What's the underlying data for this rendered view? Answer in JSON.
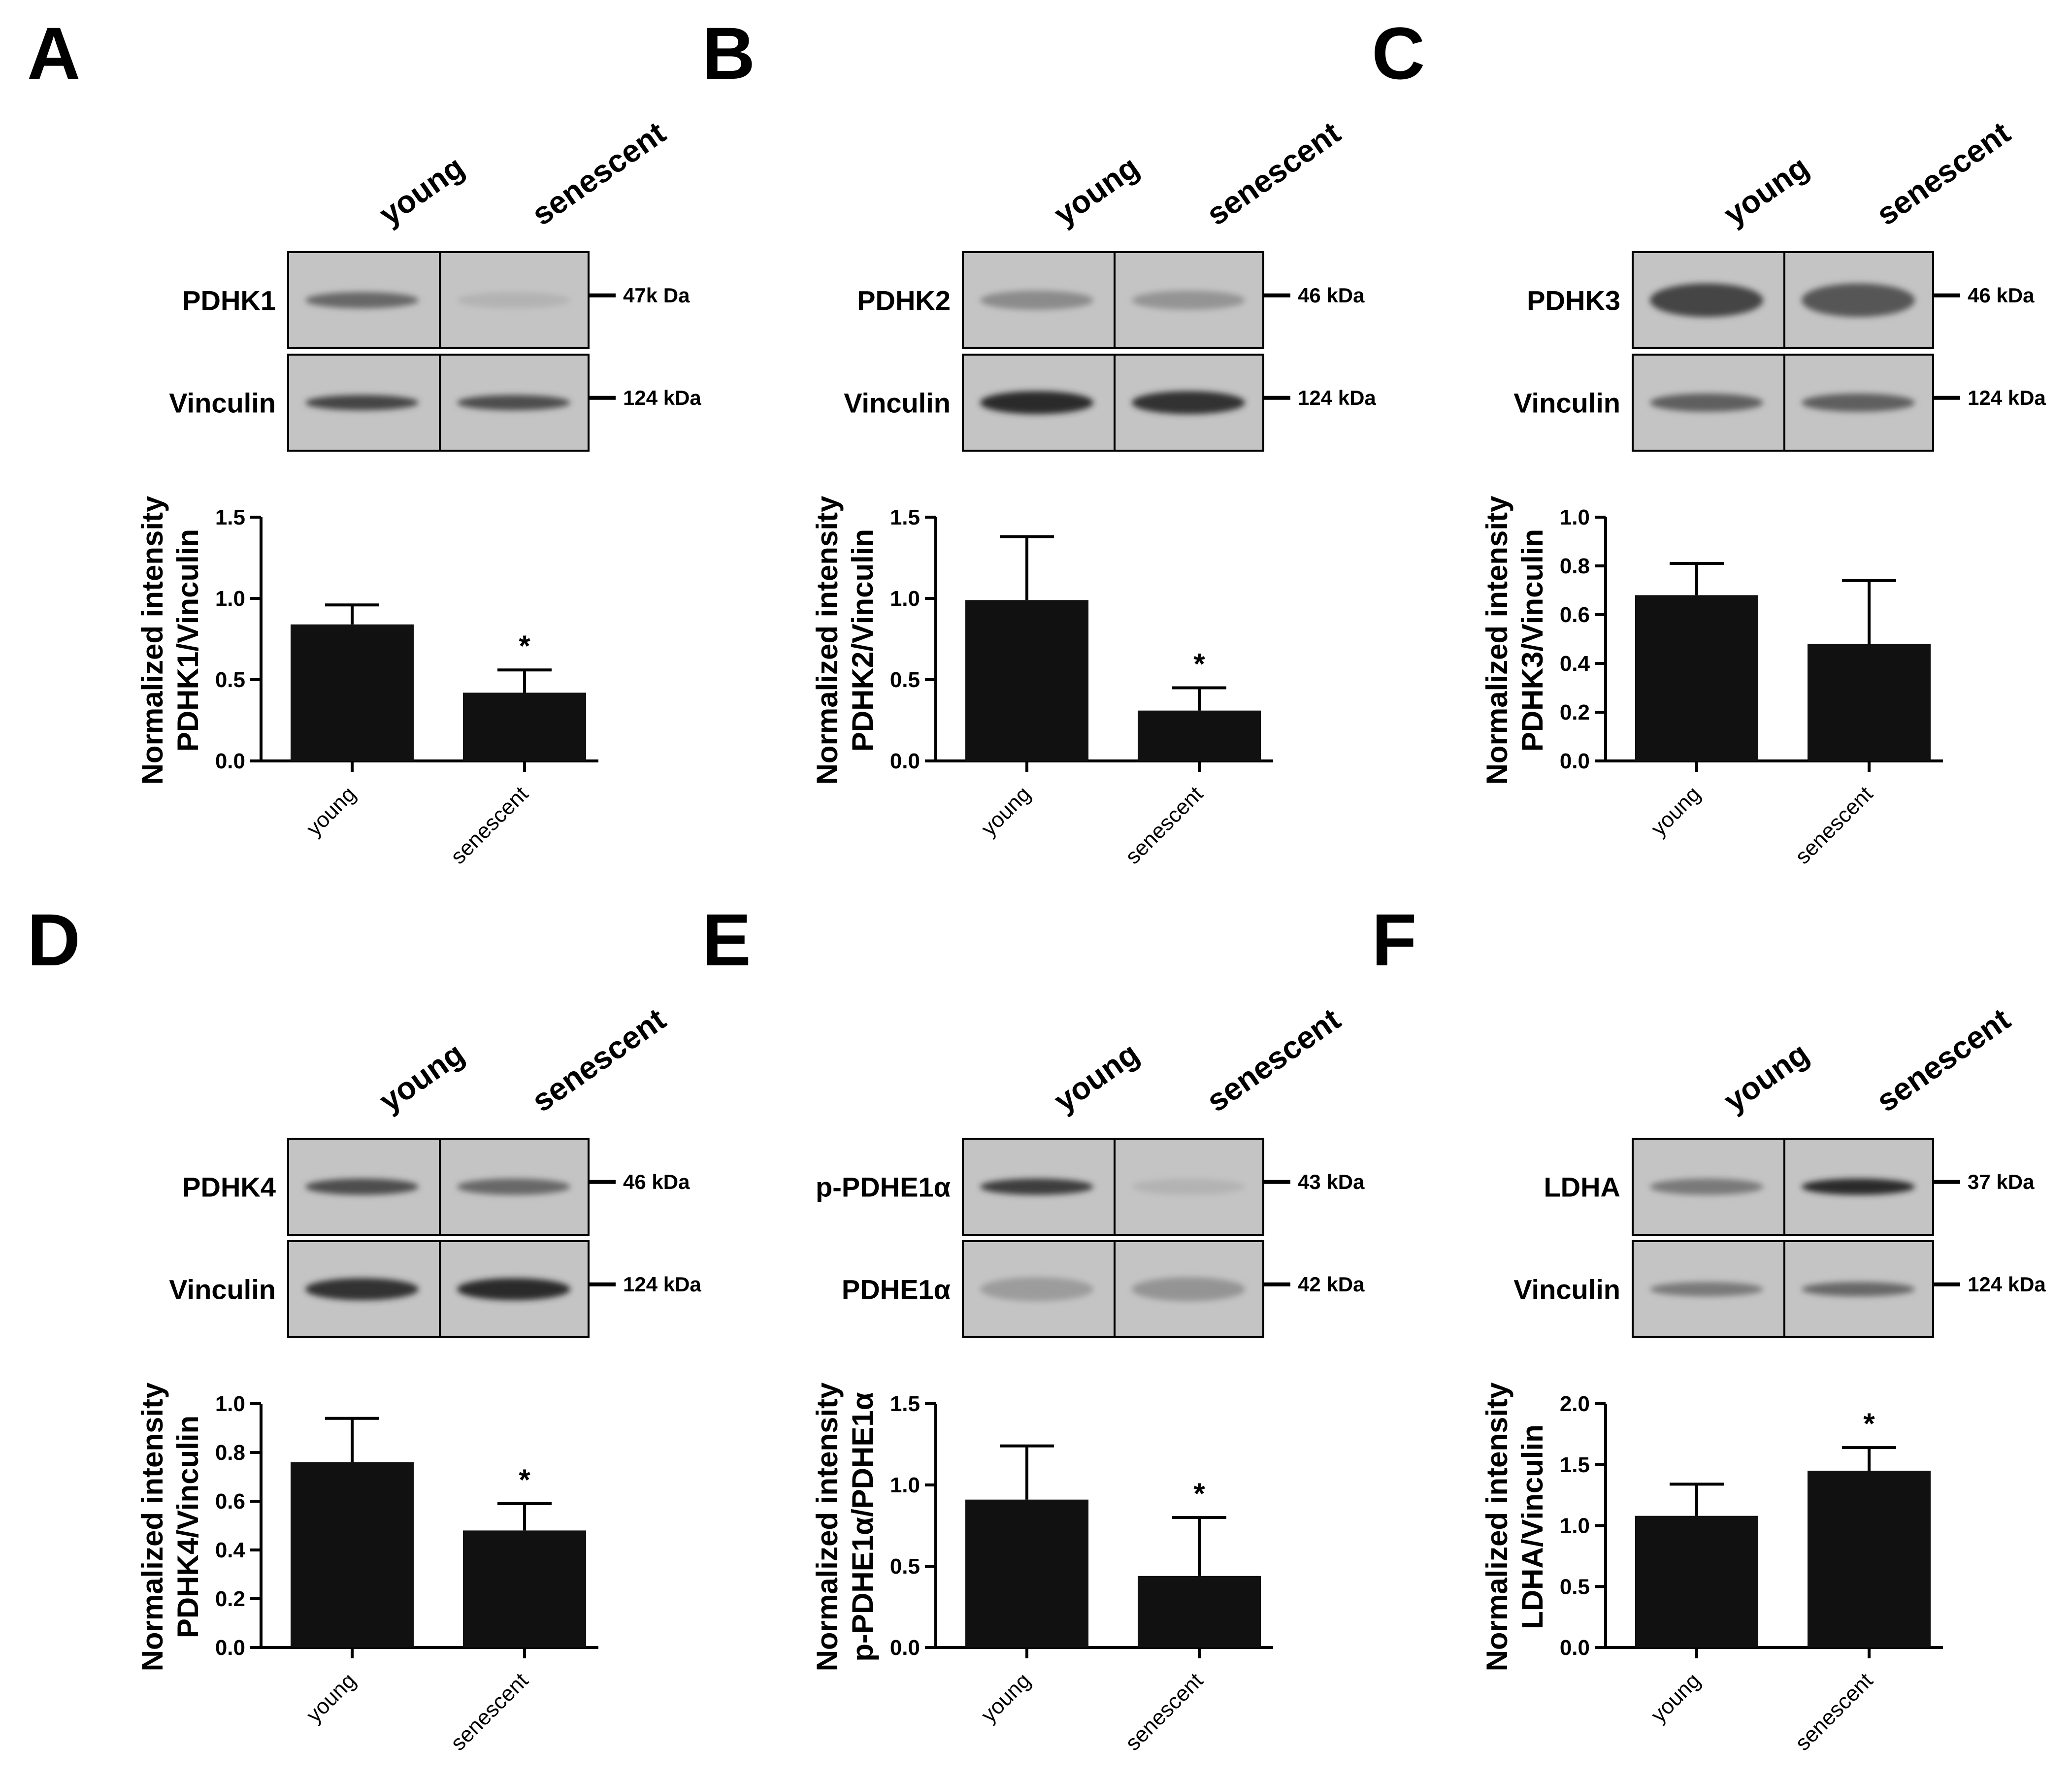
{
  "lanes": [
    "young",
    "senescent"
  ],
  "chart_data": [
    {
      "panel": "A",
      "type": "bar",
      "blot": {
        "rows": [
          {
            "protein": "PDHK1",
            "size": "47k Da",
            "band": [
              0.55,
              0.12
            ],
            "width": 0.14,
            "blur": 0.25
          },
          {
            "protein": "Vinculin",
            "size": "124 kDa",
            "band": [
              0.75,
              0.7
            ],
            "width": 0.12,
            "blur": 0.2
          }
        ]
      },
      "categories": [
        "young",
        "senescent"
      ],
      "values": [
        0.84,
        0.42
      ],
      "errors": [
        0.12,
        0.14
      ],
      "significance": [
        "",
        "*"
      ],
      "ylabel_lines": [
        "Normalized intensity",
        "PDHK1/Vinculin"
      ],
      "ylim": [
        0,
        1.5
      ],
      "yticks": [
        "0.0",
        "0.5",
        "1.0",
        "1.5"
      ],
      "ytick_values": [
        0,
        0.5,
        1.0,
        1.5
      ]
    },
    {
      "panel": "B",
      "type": "bar",
      "blot": {
        "rows": [
          {
            "protein": "PDHK2",
            "size": "46 kDa",
            "band": [
              0.35,
              0.3
            ],
            "width": 0.2,
            "blur": 0.35
          },
          {
            "protein": "Vinculin",
            "size": "124 kDa",
            "band": [
              0.9,
              0.85
            ],
            "width": 0.28,
            "blur": 0.35
          }
        ]
      },
      "categories": [
        "young",
        "senescent"
      ],
      "values": [
        0.99,
        0.31
      ],
      "errors": [
        0.39,
        0.14
      ],
      "significance": [
        "",
        "*"
      ],
      "ylabel_lines": [
        "Normalized intensity",
        "PDHK2/Vinculin"
      ],
      "ylim": [
        0,
        1.5
      ],
      "yticks": [
        "0.0",
        "0.5",
        "1.0",
        "1.5"
      ],
      "ytick_values": [
        0,
        0.5,
        1.0,
        1.5
      ]
    },
    {
      "panel": "C",
      "type": "bar",
      "blot": {
        "rows": [
          {
            "protein": "PDHK3",
            "size": "46 kDa",
            "band": [
              0.75,
              0.65
            ],
            "width": 0.5,
            "blur": 0.6
          },
          {
            "protein": "Vinculin",
            "size": "124 kDa",
            "band": [
              0.6,
              0.6
            ],
            "width": 0.18,
            "blur": 0.3
          }
        ]
      },
      "categories": [
        "young",
        "senescent"
      ],
      "values": [
        0.68,
        0.48
      ],
      "errors": [
        0.13,
        0.26
      ],
      "significance": [
        "",
        ""
      ],
      "ylabel_lines": [
        "Normalized intensity",
        "PDHK3/Vinculin"
      ],
      "ylim": [
        0,
        1.0
      ],
      "yticks": [
        "0.0",
        "0.2",
        "0.4",
        "0.6",
        "0.8",
        "1.0"
      ],
      "ytick_values": [
        0,
        0.2,
        0.4,
        0.6,
        0.8,
        1.0
      ]
    },
    {
      "panel": "D",
      "type": "bar",
      "blot": {
        "rows": [
          {
            "protein": "PDHK4",
            "size": "46 kDa",
            "band": [
              0.7,
              0.55
            ],
            "width": 0.14,
            "blur": 0.2
          },
          {
            "protein": "Vinculin",
            "size": "124 kDa",
            "band": [
              0.85,
              0.9
            ],
            "width": 0.26,
            "blur": 0.35
          }
        ]
      },
      "categories": [
        "young",
        "senescent"
      ],
      "values": [
        0.76,
        0.48
      ],
      "errors": [
        0.18,
        0.11
      ],
      "significance": [
        "",
        "*"
      ],
      "ylabel_lines": [
        "Normalized intensity",
        "PDHK4/Vinculin"
      ],
      "ylim": [
        0,
        1.0
      ],
      "yticks": [
        "0.0",
        "0.2",
        "0.4",
        "0.6",
        "0.8",
        "1.0"
      ],
      "ytick_values": [
        0,
        0.2,
        0.4,
        0.6,
        0.8,
        1.0
      ]
    },
    {
      "panel": "E",
      "type": "bar",
      "blot": {
        "rows": [
          {
            "protein": "p-PDHE1α",
            "size": "43 kDa",
            "band": [
              0.8,
              0.12
            ],
            "width": 0.14,
            "blur": 0.2
          },
          {
            "protein": "PDHE1α",
            "size": "42 kDa",
            "band": [
              0.25,
              0.3
            ],
            "width": 0.3,
            "blur": 0.5
          }
        ]
      },
      "categories": [
        "young",
        "senescent"
      ],
      "values": [
        0.91,
        0.44
      ],
      "errors": [
        0.33,
        0.36
      ],
      "significance": [
        "",
        "*"
      ],
      "ylabel_lines": [
        "Normalized intensity",
        "p-PDHE1α/PDHE1α"
      ],
      "ylim": [
        0,
        1.5
      ],
      "yticks": [
        "0.0",
        "0.5",
        "1.0",
        "1.5"
      ],
      "ytick_values": [
        0,
        0.5,
        1.0,
        1.5
      ]
    },
    {
      "panel": "F",
      "type": "bar",
      "blot": {
        "rows": [
          {
            "protein": "LDHA",
            "size": "37 kDa",
            "band": [
              0.45,
              0.9
            ],
            "width": 0.14,
            "blur": 0.2
          },
          {
            "protein": "Vinculin",
            "size": "124 kDa",
            "band": [
              0.45,
              0.55
            ],
            "width": 0.1,
            "blur": 0.15
          }
        ]
      },
      "categories": [
        "young",
        "senescent"
      ],
      "values": [
        1.08,
        1.45
      ],
      "errors": [
        0.26,
        0.19
      ],
      "significance": [
        "",
        "*"
      ],
      "ylabel_lines": [
        "Normalized intensity",
        "LDHA/Vinculin"
      ],
      "ylim": [
        0,
        2.0
      ],
      "yticks": [
        "0.0",
        "0.5",
        "1.0",
        "1.5",
        "2.0"
      ],
      "ytick_values": [
        0,
        0.5,
        1.0,
        1.5,
        2.0
      ]
    }
  ]
}
